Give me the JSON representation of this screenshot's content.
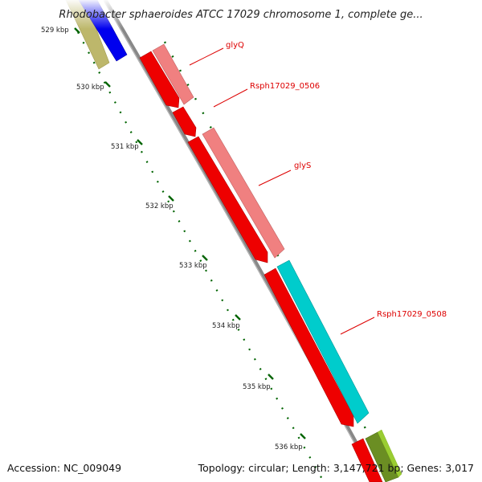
{
  "title": "Rhodobacter sphaeroides ATCC 17029 chromosome 1, complete ge...",
  "footer": {
    "accession": "Accession: NC_009049",
    "topology": "Topology: circular; Length: 3,147,721 bp; Genes: 3,017"
  },
  "kbp_ticks": [
    "529 kbp",
    "530 kbp",
    "531 kbp",
    "532 kbp",
    "533 kbp",
    "534 kbp",
    "535 kbp",
    "536 kbp"
  ],
  "gene_labels": [
    "glyQ",
    "Rsph17029_0506",
    "glyS",
    "Rsph17029_0508"
  ],
  "colors": {
    "backbone": "#888888",
    "gene_red": "#ee0000",
    "gene_pink": "#f08080",
    "gene_cyan": "#00cccc",
    "gene_blue": "#0000ee",
    "gene_olive": "#bdb76b",
    "gene_darkolive": "#6b8e23",
    "tick_green": "#006400",
    "label_red": "#dd0000"
  }
}
